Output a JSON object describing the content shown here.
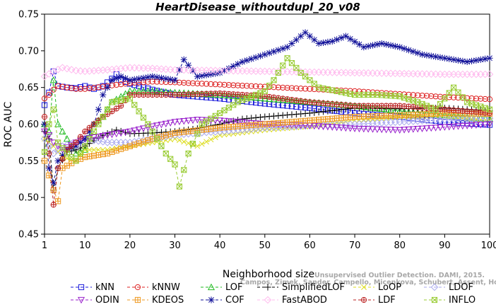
{
  "chart_data": {
    "type": "line",
    "title": "HeartDisease_withoutdupl_20_v08",
    "xlabel": "Neighborhood size",
    "ylabel": "ROC AUC",
    "xlim": [
      1,
      100
    ],
    "ylim": [
      0.45,
      0.75
    ],
    "xticks": [
      1,
      10,
      20,
      30,
      40,
      50,
      60,
      70,
      80,
      90,
      100
    ],
    "yticks": [
      0.45,
      0.5,
      0.55,
      0.6,
      0.65,
      0.7,
      0.75
    ],
    "legend_position": "bottom",
    "watermark": [
      "Unsupervised Outlier Detection. DAMI, 2015.",
      "Campos, Zimek, Sander, Campello, Micenkova, Schubert, Assent, Houle"
    ],
    "series": [
      {
        "name": "kNN",
        "color": "#1a1adb",
        "marker": "square",
        "line": "dash",
        "points": [
          [
            1,
            0.626
          ],
          [
            2,
            0.643
          ],
          [
            3,
            0.672
          ],
          [
            4,
            0.652
          ],
          [
            6,
            0.65
          ],
          [
            8,
            0.649
          ],
          [
            10,
            0.652
          ],
          [
            12,
            0.648
          ],
          [
            14,
            0.652
          ],
          [
            16,
            0.662
          ],
          [
            17,
            0.668
          ],
          [
            18,
            0.66
          ],
          [
            20,
            0.655
          ],
          [
            25,
            0.647
          ],
          [
            30,
            0.64
          ],
          [
            40,
            0.635
          ],
          [
            50,
            0.628
          ],
          [
            60,
            0.622
          ],
          [
            70,
            0.615
          ],
          [
            80,
            0.61
          ],
          [
            90,
            0.603
          ],
          [
            100,
            0.599
          ]
        ]
      },
      {
        "name": "kNNW",
        "color": "#dd2222",
        "marker": "circle",
        "line": "dash",
        "points": [
          [
            1,
            0.635
          ],
          [
            2,
            0.64
          ],
          [
            3,
            0.647
          ],
          [
            4,
            0.652
          ],
          [
            6,
            0.65
          ],
          [
            8,
            0.648
          ],
          [
            10,
            0.648
          ],
          [
            15,
            0.652
          ],
          [
            20,
            0.656
          ],
          [
            25,
            0.658
          ],
          [
            30,
            0.657
          ],
          [
            40,
            0.654
          ],
          [
            50,
            0.651
          ],
          [
            60,
            0.648
          ],
          [
            70,
            0.645
          ],
          [
            80,
            0.641
          ],
          [
            90,
            0.637
          ],
          [
            100,
            0.634
          ]
        ]
      },
      {
        "name": "LOF",
        "color": "#22bb22",
        "marker": "triangle-up",
        "line": "dash",
        "points": [
          [
            1,
            0.6
          ],
          [
            2,
            0.59
          ],
          [
            3,
            0.66
          ],
          [
            4,
            0.6
          ],
          [
            6,
            0.58
          ],
          [
            8,
            0.56
          ],
          [
            10,
            0.565
          ],
          [
            12,
            0.6
          ],
          [
            14,
            0.61
          ],
          [
            16,
            0.63
          ],
          [
            20,
            0.645
          ],
          [
            25,
            0.645
          ],
          [
            30,
            0.643
          ],
          [
            40,
            0.64
          ],
          [
            50,
            0.635
          ],
          [
            60,
            0.63
          ],
          [
            70,
            0.625
          ],
          [
            80,
            0.618
          ],
          [
            90,
            0.612
          ],
          [
            100,
            0.607
          ]
        ]
      },
      {
        "name": "SimplifiedLOF",
        "color": "#000000",
        "marker": "plus",
        "line": "dash",
        "points": [
          [
            1,
            0.59
          ],
          [
            2,
            0.58
          ],
          [
            3,
            0.51
          ],
          [
            4,
            0.54
          ],
          [
            6,
            0.562
          ],
          [
            8,
            0.565
          ],
          [
            10,
            0.57
          ],
          [
            14,
            0.585
          ],
          [
            17,
            0.592
          ],
          [
            20,
            0.587
          ],
          [
            25,
            0.588
          ],
          [
            30,
            0.59
          ],
          [
            35,
            0.594
          ],
          [
            40,
            0.6
          ],
          [
            45,
            0.607
          ],
          [
            50,
            0.61
          ],
          [
            60,
            0.615
          ],
          [
            70,
            0.622
          ],
          [
            80,
            0.621
          ],
          [
            90,
            0.622
          ],
          [
            100,
            0.618
          ]
        ]
      },
      {
        "name": "LoOP",
        "color": "#dddd22",
        "marker": "x",
        "line": "dash",
        "points": [
          [
            1,
            0.58
          ],
          [
            3,
            0.57
          ],
          [
            5,
            0.555
          ],
          [
            8,
            0.55
          ],
          [
            10,
            0.565
          ],
          [
            15,
            0.565
          ],
          [
            20,
            0.57
          ],
          [
            25,
            0.575
          ],
          [
            30,
            0.58
          ],
          [
            35,
            0.57
          ],
          [
            40,
            0.585
          ],
          [
            50,
            0.592
          ],
          [
            60,
            0.597
          ],
          [
            70,
            0.605
          ],
          [
            80,
            0.61
          ],
          [
            90,
            0.61
          ],
          [
            100,
            0.605
          ]
        ]
      },
      {
        "name": "LDOF",
        "color": "#aaaaee",
        "marker": "diamond",
        "line": "dash",
        "points": [
          [
            1,
            0.58
          ],
          [
            3,
            0.56
          ],
          [
            5,
            0.57
          ],
          [
            8,
            0.575
          ],
          [
            10,
            0.58
          ],
          [
            15,
            0.575
          ],
          [
            20,
            0.575
          ],
          [
            25,
            0.58
          ],
          [
            30,
            0.585
          ],
          [
            35,
            0.588
          ],
          [
            40,
            0.59
          ],
          [
            50,
            0.595
          ],
          [
            60,
            0.598
          ],
          [
            70,
            0.6
          ],
          [
            80,
            0.603
          ],
          [
            90,
            0.606
          ],
          [
            100,
            0.608
          ]
        ]
      },
      {
        "name": "ODIN",
        "color": "#9922cc",
        "marker": "triangle-down",
        "line": "dash",
        "points": [
          [
            1,
            0.59
          ],
          [
            2,
            0.585
          ],
          [
            3,
            0.575
          ],
          [
            5,
            0.565
          ],
          [
            8,
            0.575
          ],
          [
            10,
            0.58
          ],
          [
            15,
            0.585
          ],
          [
            20,
            0.59
          ],
          [
            25,
            0.597
          ],
          [
            30,
            0.603
          ],
          [
            35,
            0.606
          ],
          [
            40,
            0.605
          ],
          [
            50,
            0.6
          ],
          [
            60,
            0.598
          ],
          [
            70,
            0.594
          ],
          [
            80,
            0.592
          ],
          [
            90,
            0.596
          ],
          [
            100,
            0.6
          ]
        ]
      },
      {
        "name": "KDEOS",
        "color": "#ee9922",
        "marker": "square-cross",
        "line": "dash",
        "points": [
          [
            1,
            0.55
          ],
          [
            3,
            0.51
          ],
          [
            4,
            0.495
          ],
          [
            5,
            0.54
          ],
          [
            8,
            0.55
          ],
          [
            10,
            0.555
          ],
          [
            15,
            0.56
          ],
          [
            20,
            0.57
          ],
          [
            25,
            0.58
          ],
          [
            30,
            0.588
          ],
          [
            40,
            0.595
          ],
          [
            50,
            0.6
          ],
          [
            60,
            0.605
          ],
          [
            70,
            0.61
          ],
          [
            80,
            0.612
          ],
          [
            90,
            0.615
          ],
          [
            100,
            0.614
          ]
        ]
      },
      {
        "name": "COF",
        "color": "#111199",
        "marker": "star",
        "line": "dash",
        "points": [
          [
            1,
            0.6
          ],
          [
            2,
            0.54
          ],
          [
            3,
            0.52
          ],
          [
            4,
            0.55
          ],
          [
            6,
            0.565
          ],
          [
            8,
            0.57
          ],
          [
            10,
            0.58
          ],
          [
            12,
            0.6
          ],
          [
            14,
            0.64
          ],
          [
            16,
            0.66
          ],
          [
            18,
            0.665
          ],
          [
            20,
            0.66
          ],
          [
            25,
            0.665
          ],
          [
            30,
            0.66
          ],
          [
            32,
            0.688
          ],
          [
            35,
            0.665
          ],
          [
            40,
            0.67
          ],
          [
            45,
            0.685
          ],
          [
            50,
            0.695
          ],
          [
            55,
            0.705
          ],
          [
            59,
            0.725
          ],
          [
            62,
            0.71
          ],
          [
            65,
            0.713
          ],
          [
            68,
            0.72
          ],
          [
            72,
            0.705
          ],
          [
            76,
            0.71
          ],
          [
            80,
            0.705
          ],
          [
            85,
            0.695
          ],
          [
            90,
            0.69
          ],
          [
            95,
            0.685
          ],
          [
            100,
            0.69
          ]
        ]
      },
      {
        "name": "FastABOD",
        "color": "#ffbbee",
        "marker": "diamond",
        "line": "dash",
        "points": [
          [
            1,
            0.665
          ],
          [
            3,
            0.672
          ],
          [
            5,
            0.677
          ],
          [
            8,
            0.673
          ],
          [
            10,
            0.672
          ],
          [
            15,
            0.674
          ],
          [
            20,
            0.677
          ],
          [
            25,
            0.676
          ],
          [
            30,
            0.674
          ],
          [
            40,
            0.673
          ],
          [
            50,
            0.672
          ],
          [
            60,
            0.671
          ],
          [
            70,
            0.67
          ],
          [
            80,
            0.669
          ],
          [
            90,
            0.668
          ],
          [
            100,
            0.668
          ]
        ]
      },
      {
        "name": "LDF",
        "color": "#bb2222",
        "marker": "circle-plus",
        "line": "dash",
        "points": [
          [
            1,
            0.61
          ],
          [
            2,
            0.56
          ],
          [
            3,
            0.49
          ],
          [
            4,
            0.54
          ],
          [
            6,
            0.565
          ],
          [
            8,
            0.575
          ],
          [
            10,
            0.59
          ],
          [
            14,
            0.61
          ],
          [
            18,
            0.625
          ],
          [
            20,
            0.64
          ],
          [
            25,
            0.64
          ],
          [
            30,
            0.64
          ],
          [
            40,
            0.642
          ],
          [
            50,
            0.638
          ],
          [
            60,
            0.63
          ],
          [
            70,
            0.625
          ],
          [
            80,
            0.625
          ],
          [
            90,
            0.62
          ],
          [
            100,
            0.615
          ]
        ]
      },
      {
        "name": "INFLO",
        "color": "#99cc33",
        "marker": "square-x",
        "line": "dash",
        "points": [
          [
            1,
            0.562
          ],
          [
            2,
            0.6
          ],
          [
            3,
            0.62
          ],
          [
            4,
            0.575
          ],
          [
            6,
            0.56
          ],
          [
            8,
            0.55
          ],
          [
            10,
            0.57
          ],
          [
            13,
            0.6
          ],
          [
            16,
            0.63
          ],
          [
            20,
            0.635
          ],
          [
            24,
            0.6
          ],
          [
            28,
            0.56
          ],
          [
            30,
            0.545
          ],
          [
            31,
            0.515
          ],
          [
            33,
            0.56
          ],
          [
            36,
            0.6
          ],
          [
            40,
            0.615
          ],
          [
            44,
            0.63
          ],
          [
            48,
            0.64
          ],
          [
            50,
            0.645
          ],
          [
            52,
            0.66
          ],
          [
            55,
            0.69
          ],
          [
            58,
            0.67
          ],
          [
            62,
            0.65
          ],
          [
            66,
            0.645
          ],
          [
            70,
            0.64
          ],
          [
            75,
            0.64
          ],
          [
            80,
            0.638
          ],
          [
            84,
            0.63
          ],
          [
            88,
            0.62
          ],
          [
            92,
            0.65
          ],
          [
            95,
            0.63
          ],
          [
            100,
            0.62
          ]
        ]
      }
    ]
  }
}
